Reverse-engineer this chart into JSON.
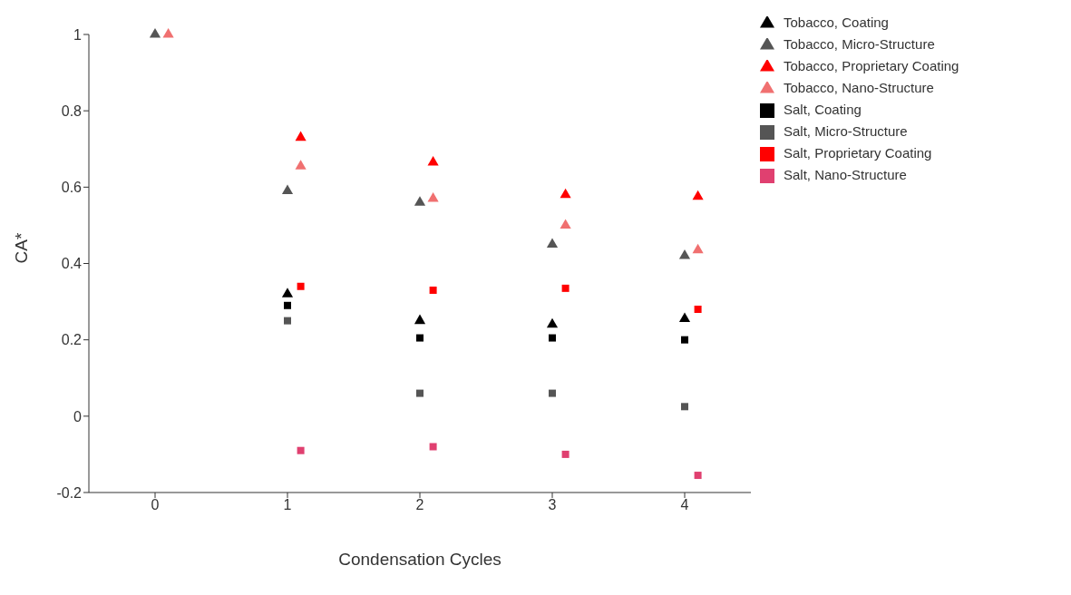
{
  "chart_data": {
    "type": "scatter",
    "xlabel": "Condensation Cycles",
    "ylabel": "CA*",
    "xlim": [
      -0.5,
      4.5
    ],
    "xticks": [
      0,
      1,
      2,
      3,
      4
    ],
    "ylim": [
      -0.2,
      1
    ],
    "yticks": [
      -0.2,
      0,
      0.2,
      0.4,
      0.6,
      0.8,
      1
    ],
    "legend": "top right",
    "series": [
      {
        "name": "Tobacco, Coating",
        "color": "#000000",
        "marker": "triangle",
        "x": [
          1,
          2,
          3,
          4
        ],
        "values": [
          0.32,
          0.25,
          0.24,
          0.255
        ]
      },
      {
        "name": "Tobacco, Micro-Structure",
        "color": "#555555",
        "marker": "triangle",
        "x": [
          0,
          1,
          2,
          3,
          4
        ],
        "values": [
          1.0,
          0.59,
          0.56,
          0.45,
          0.42
        ]
      },
      {
        "name": "Tobacco, Proprietary Coating",
        "color": "#ff0000",
        "marker": "triangle",
        "x": [
          1.1,
          2.1,
          3.1,
          4.1
        ],
        "values": [
          0.73,
          0.665,
          0.58,
          0.575
        ]
      },
      {
        "name": "Tobacco, Nano-Structure",
        "color": "#f07070",
        "marker": "triangle",
        "x": [
          0.1,
          1.1,
          2.1,
          3.1,
          4.1
        ],
        "values": [
          1.0,
          0.655,
          0.57,
          0.5,
          0.435
        ]
      },
      {
        "name": "Salt, Coating",
        "color": "#000000",
        "marker": "square",
        "x": [
          1,
          2,
          3,
          4
        ],
        "values": [
          0.29,
          0.205,
          0.205,
          0.2
        ]
      },
      {
        "name": "Salt, Micro-Structure",
        "color": "#555555",
        "marker": "square",
        "x": [
          1,
          2,
          3,
          4
        ],
        "values": [
          0.25,
          0.06,
          0.06,
          0.025
        ]
      },
      {
        "name": "Salt, Proprietary Coating",
        "color": "#ff0000",
        "marker": "square",
        "x": [
          1.1,
          2.1,
          3.1,
          4.1
        ],
        "values": [
          0.34,
          0.33,
          0.335,
          0.28
        ]
      },
      {
        "name": "Salt, Nano-Structure",
        "color": "#e04070",
        "marker": "square",
        "x": [
          1.1,
          2.1,
          3.1,
          4.1
        ],
        "values": [
          -0.09,
          -0.08,
          -0.1,
          -0.155
        ]
      }
    ]
  }
}
